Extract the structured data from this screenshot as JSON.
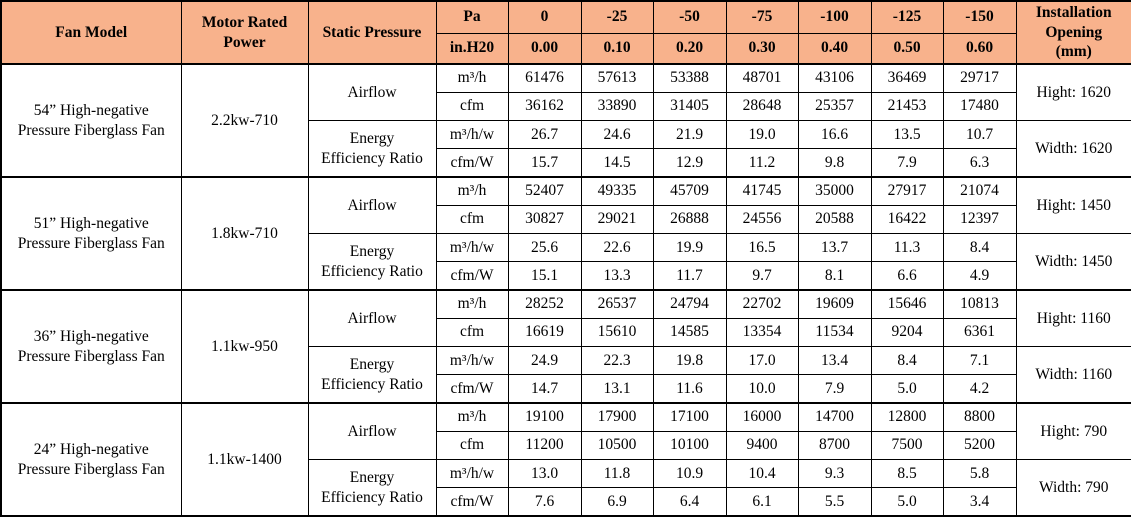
{
  "colors": {
    "header_bg": "#F8B28C",
    "border": "#000000",
    "body_bg": "#FFFFFF"
  },
  "table": {
    "header": {
      "fan_model": "Fan Model",
      "motor_rated_power": "Motor Rated\nPower",
      "static_pressure": "Static Pressure",
      "pa_label": "Pa",
      "inh2o_label": "in.H20",
      "pa_values": [
        "0",
        "-25",
        "-50",
        "-75",
        "-100",
        "-125",
        "-150"
      ],
      "inh2o_values": [
        "0.00",
        "0.10",
        "0.20",
        "0.30",
        "0.40",
        "0.50",
        "0.60"
      ],
      "installation_opening": "Installation\nOpening\n(mm)"
    },
    "labels": {
      "airflow": "Airflow",
      "energy_efficiency_ratio": "Energy\nEfficiency Ratio",
      "units": [
        "m³/h",
        "cfm",
        "m³/h/w",
        "cfm/W"
      ]
    },
    "fans": [
      {
        "model": "54” High-negative\nPressure Fiberglass Fan",
        "power": "2.2kw-710",
        "airflow_m3h": [
          "61476",
          "57613",
          "53388",
          "48701",
          "43106",
          "36469",
          "29717"
        ],
        "airflow_cfm": [
          "36162",
          "33890",
          "31405",
          "28648",
          "25357",
          "21453",
          "17480"
        ],
        "eer_m3hw": [
          "26.7",
          "24.6",
          "21.9",
          "19.0",
          "16.6",
          "13.5",
          "10.7"
        ],
        "eer_cfmw": [
          "15.7",
          "14.5",
          "12.9",
          "11.2",
          "9.8",
          "7.9",
          "6.3"
        ],
        "hight": "Hight: 1620",
        "width": "Width: 1620"
      },
      {
        "model": "51” High-negative\nPressure Fiberglass Fan",
        "power": "1.8kw-710",
        "airflow_m3h": [
          "52407",
          "49335",
          "45709",
          "41745",
          "35000",
          "27917",
          "21074"
        ],
        "airflow_cfm": [
          "30827",
          "29021",
          "26888",
          "24556",
          "20588",
          "16422",
          "12397"
        ],
        "eer_m3hw": [
          "25.6",
          "22.6",
          "19.9",
          "16.5",
          "13.7",
          "11.3",
          "8.4"
        ],
        "eer_cfmw": [
          "15.1",
          "13.3",
          "11.7",
          "9.7",
          "8.1",
          "6.6",
          "4.9"
        ],
        "hight": "Hight: 1450",
        "width": "Width: 1450"
      },
      {
        "model": "36” High-negative\nPressure Fiberglass Fan",
        "power": "1.1kw-950",
        "airflow_m3h": [
          "28252",
          "26537",
          "24794",
          "22702",
          "19609",
          "15646",
          "10813"
        ],
        "airflow_cfm": [
          "16619",
          "15610",
          "14585",
          "13354",
          "11534",
          "9204",
          "6361"
        ],
        "eer_m3hw": [
          "24.9",
          "22.3",
          "19.8",
          "17.0",
          "13.4",
          "8.4",
          "7.1"
        ],
        "eer_cfmw": [
          "14.7",
          "13.1",
          "11.6",
          "10.0",
          "7.9",
          "5.0",
          "4.2"
        ],
        "hight": "Hight: 1160",
        "width": "Width: 1160"
      },
      {
        "model": "24” High-negative\nPressure Fiberglass Fan",
        "power": "1.1kw-1400",
        "airflow_m3h": [
          "19100",
          "17900",
          "17100",
          "16000",
          "14700",
          "12800",
          "8800"
        ],
        "airflow_cfm": [
          "11200",
          "10500",
          "10100",
          "9400",
          "8700",
          "7500",
          "5200"
        ],
        "eer_m3hw": [
          "13.0",
          "11.8",
          "10.9",
          "10.4",
          "9.3",
          "8.5",
          "5.8"
        ],
        "eer_cfmw": [
          "7.6",
          "6.9",
          "6.4",
          "6.1",
          "5.5",
          "5.0",
          "3.4"
        ],
        "hight": "Hight: 790",
        "width": "Width: 790"
      }
    ]
  }
}
